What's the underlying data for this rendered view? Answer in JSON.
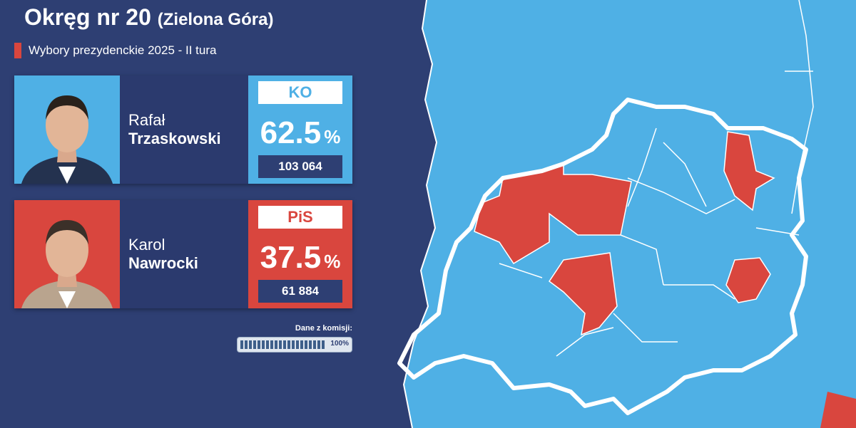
{
  "header": {
    "title": "Okręg nr 20",
    "subtitle_place": "(Zielona Góra)",
    "election": "Wybory prezydenckie 2025 - II tura"
  },
  "candidates": [
    {
      "first_name": "Rafał",
      "last_name": "Trzaskowski",
      "party": "KO",
      "percent": 62.5,
      "percent_unit": "%",
      "votes": "103 064",
      "color": "#4fb0e5"
    },
    {
      "first_name": "Karol",
      "last_name": "Nawrocki",
      "party": "PiS",
      "percent": 37.5,
      "percent_unit": "%",
      "votes": "61 884",
      "color": "#d9463e"
    }
  ],
  "progress": {
    "label": "Dane z komisji:",
    "value": 100,
    "value_label": "100%"
  }
}
